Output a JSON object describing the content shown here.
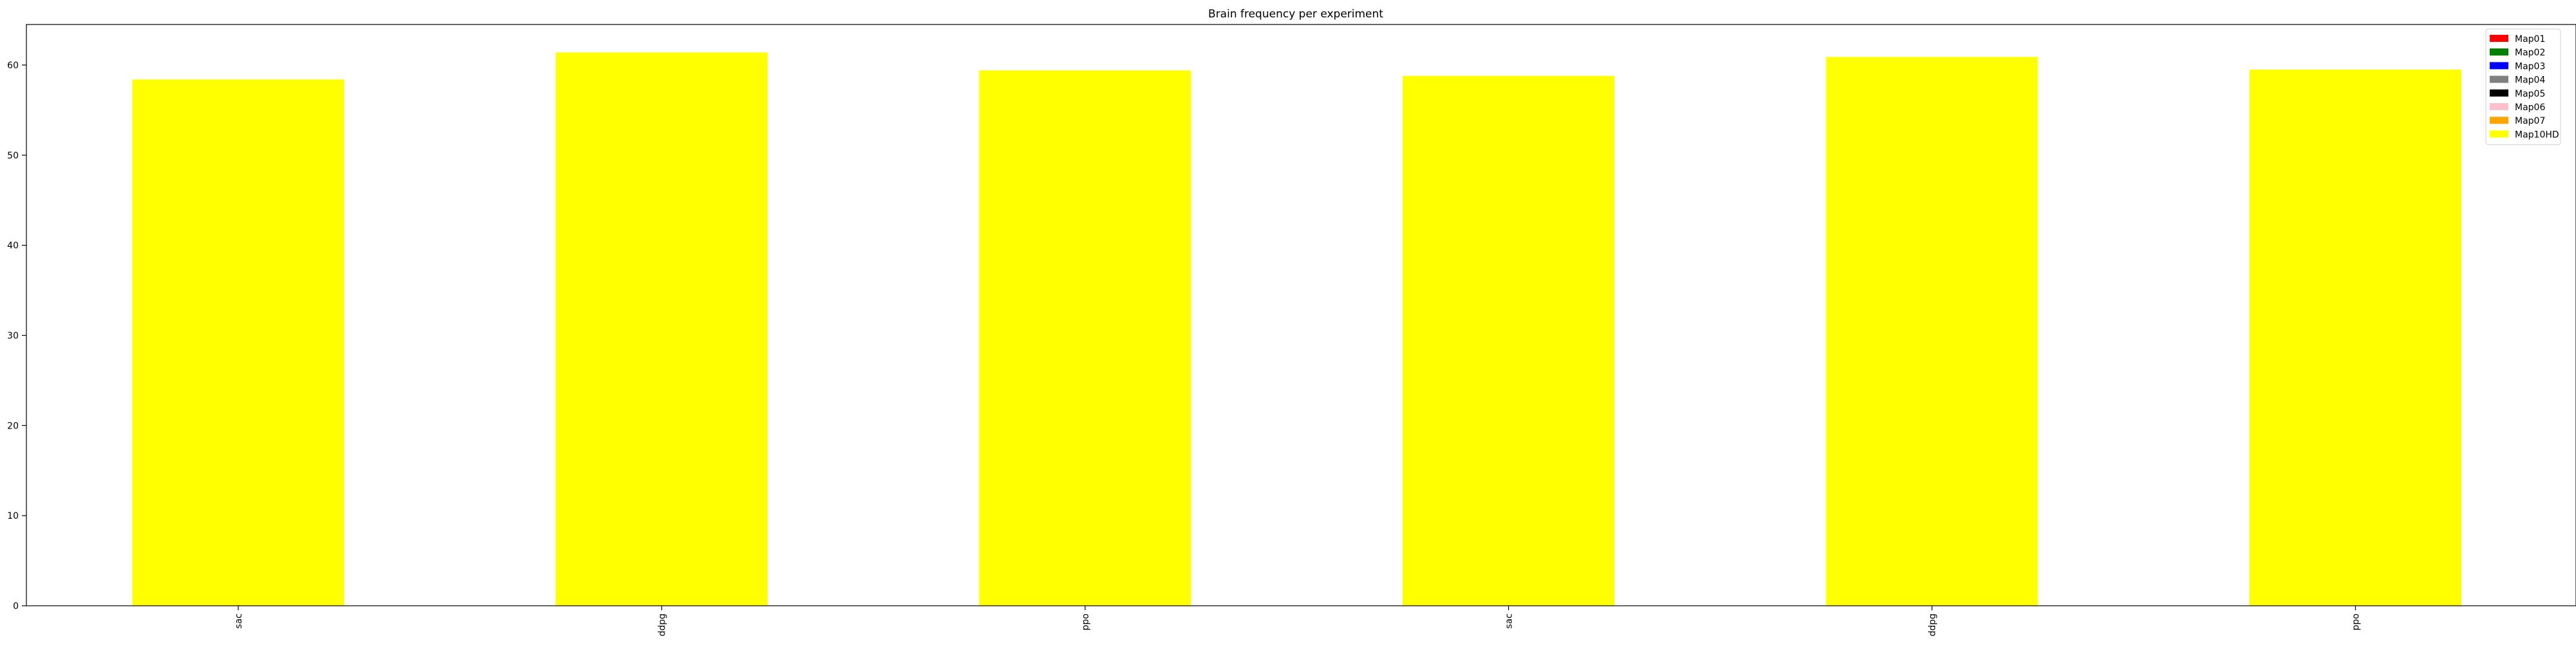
{
  "chart_data": {
    "type": "bar",
    "stacked": true,
    "title": "Brain frequency per experiment",
    "xlabel": "",
    "ylabel": "",
    "categories": [
      "sac",
      "ddpg",
      "ppo",
      "sac",
      "ddpg",
      "ppo"
    ],
    "ylim": [
      0,
      64.5
    ],
    "yticks": [
      0,
      10,
      20,
      30,
      40,
      50,
      60
    ],
    "legend_position": "top-right",
    "series": [
      {
        "name": "Map01",
        "color": "#ff0000",
        "values": [
          0,
          0,
          0,
          0,
          0,
          0
        ]
      },
      {
        "name": "Map02",
        "color": "#008000",
        "values": [
          0,
          0,
          0,
          0,
          0,
          0
        ]
      },
      {
        "name": "Map03",
        "color": "#0000ff",
        "values": [
          0,
          0,
          0,
          0,
          0,
          0
        ]
      },
      {
        "name": "Map04",
        "color": "#808080",
        "values": [
          0,
          0,
          0,
          0,
          0,
          0
        ]
      },
      {
        "name": "Map05",
        "color": "#000000",
        "values": [
          0,
          0,
          0,
          0,
          0,
          0
        ]
      },
      {
        "name": "Map06",
        "color": "#ffc0cb",
        "values": [
          0,
          0,
          0,
          0,
          0,
          0
        ]
      },
      {
        "name": "Map07",
        "color": "#ffa500",
        "values": [
          0,
          0,
          0,
          0,
          0,
          0
        ]
      },
      {
        "name": "Map10HD",
        "color": "#ffff00",
        "values": [
          58.4,
          61.4,
          59.4,
          58.8,
          60.9,
          59.5
        ]
      }
    ]
  }
}
